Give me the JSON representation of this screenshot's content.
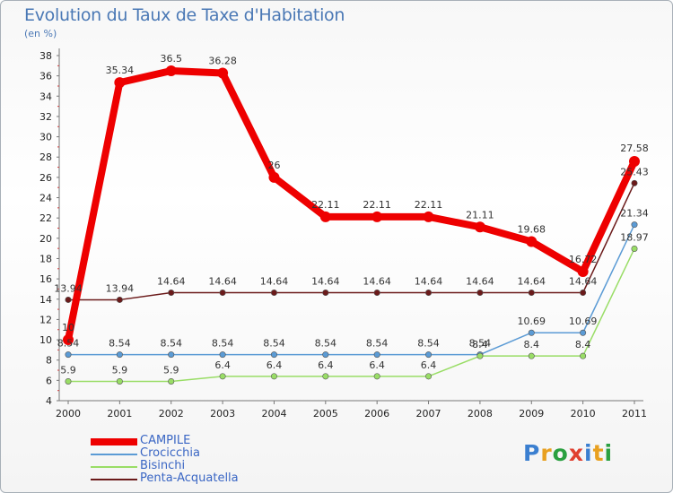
{
  "header": {
    "title": "Evolution du Taux de Taxe d'Habitation",
    "subtitle": "(en %)"
  },
  "logo": {
    "text": "Proxiti",
    "colors": [
      "#3b7fd0",
      "#e8a020",
      "#2aa040",
      "#e04030",
      "#3b7fd0",
      "#e8a020",
      "#2aa040"
    ]
  },
  "chart_data": {
    "type": "line",
    "title": "Evolution du Taux de Taxe d'Habitation",
    "ylabel": "(en %)",
    "xlabel": "",
    "categories": [
      "2000",
      "2001",
      "2002",
      "2003",
      "2004",
      "2005",
      "2006",
      "2007",
      "2008",
      "2009",
      "2010",
      "2011"
    ],
    "ylim": [
      4,
      38
    ],
    "yticks": [
      4,
      6,
      8,
      10,
      12,
      14,
      16,
      18,
      20,
      22,
      24,
      26,
      28,
      30,
      32,
      34,
      36,
      38
    ],
    "grid": false,
    "legend_position": "bottom-left",
    "series": [
      {
        "name": "CAMPILE",
        "color": "#ee0000",
        "values": [
          10,
          35.34,
          36.5,
          36.28,
          26,
          22.11,
          22.11,
          22.11,
          21.11,
          19.68,
          16.72,
          27.58
        ],
        "labels": [
          "10",
          "35.34",
          "36.5",
          "36.28",
          "26",
          "22.11",
          "22.11",
          "22.11",
          "21.11",
          "19.68",
          "16.72",
          "27.58"
        ]
      },
      {
        "name": "Crocicchia",
        "color": "#5b9bd5",
        "values": [
          8.54,
          8.54,
          8.54,
          8.54,
          8.54,
          8.54,
          8.54,
          8.54,
          8.54,
          10.69,
          10.69,
          21.34
        ],
        "labels": [
          "8.54",
          "8.54",
          "8.54",
          "8.54",
          "8.54",
          "8.54",
          "8.54",
          "8.54",
          "8.54",
          "10.69",
          "10.69",
          "21.34"
        ]
      },
      {
        "name": "Bisinchi",
        "color": "#99dd66",
        "values": [
          5.9,
          5.9,
          5.9,
          6.4,
          6.4,
          6.4,
          6.4,
          6.4,
          8.4,
          8.4,
          8.4,
          18.97
        ],
        "labels": [
          "5.9",
          "5.9",
          "5.9",
          "6.4",
          "6.4",
          "6.4",
          "6.4",
          "6.4",
          "8.4",
          "8.4",
          "8.4",
          "18.97"
        ]
      },
      {
        "name": "Penta-Acquatella",
        "color": "#6b1a1a",
        "values": [
          13.94,
          13.94,
          14.64,
          14.64,
          14.64,
          14.64,
          14.64,
          14.64,
          14.64,
          14.64,
          14.64,
          25.43
        ],
        "labels": [
          "13.94",
          "13.94",
          "14.64",
          "14.64",
          "14.64",
          "14.64",
          "14.64",
          "14.64",
          "14.64",
          "14.64",
          "14.64",
          "25.43"
        ]
      }
    ]
  }
}
